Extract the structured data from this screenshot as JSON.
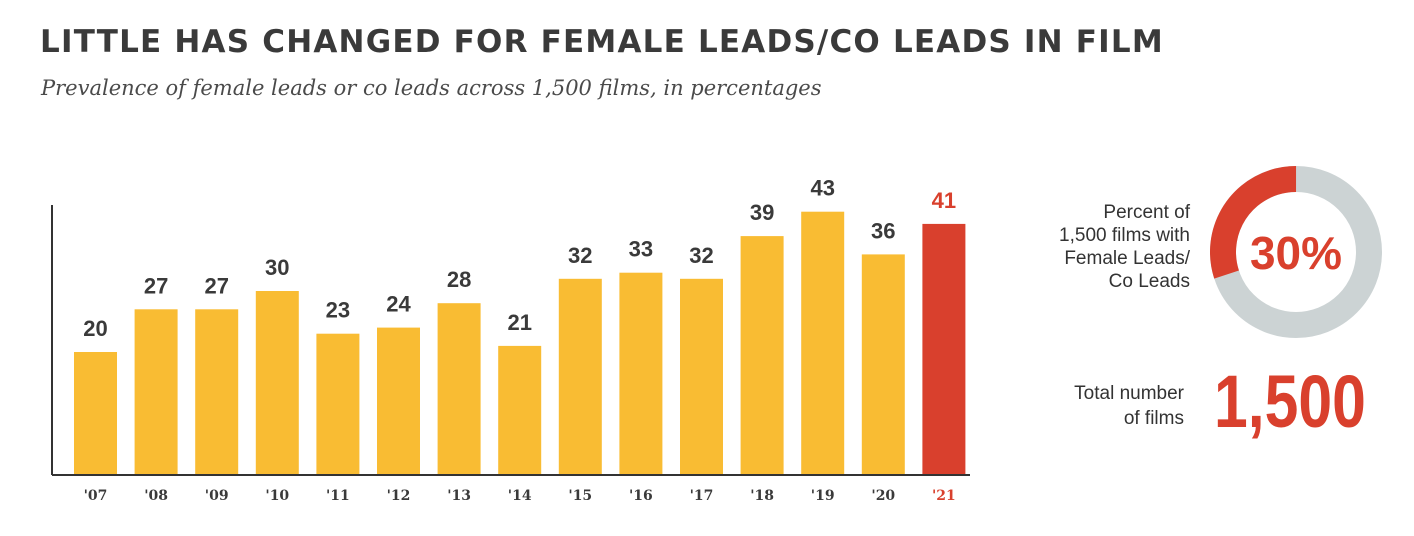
{
  "header": {
    "title": "LITTLE HAS CHANGED FOR FEMALE LEADS/CO LEADS IN FILM",
    "subtitle": "Prevalence of female leads or co leads across 1,500 films, in percentages"
  },
  "colors": {
    "bar": "#f9bc33",
    "highlight": "#d9402d",
    "text_dark": "#3a3a3a",
    "donut_track": "#ccd3d4",
    "axis": "#333333"
  },
  "chart_data": {
    "type": "bar",
    "title": "LITTLE HAS CHANGED FOR FEMALE LEADS/CO LEADS IN FILM",
    "subtitle": "Prevalence of female leads or co leads across 1,500 films, in percentages",
    "categories": [
      "'07",
      "'08",
      "'09",
      "'10",
      "'11",
      "'12",
      "'13",
      "'14",
      "'15",
      "'16",
      "'17",
      "'18",
      "'19",
      "'20",
      "'21"
    ],
    "values": [
      20,
      27,
      27,
      30,
      23,
      24,
      28,
      21,
      32,
      33,
      32,
      39,
      43,
      36,
      41
    ],
    "highlight_index": 14,
    "xlabel": "",
    "ylabel": "",
    "ylim": [
      0,
      50
    ],
    "grid": false,
    "data_labels": true
  },
  "donut": {
    "label_lines": [
      "Percent of",
      "1,500 films with",
      "Female Leads/",
      "Co Leads"
    ],
    "value": 30,
    "value_text": "30%"
  },
  "total": {
    "label_lines": [
      "Total number",
      "of films"
    ],
    "value_text": "1,500"
  }
}
